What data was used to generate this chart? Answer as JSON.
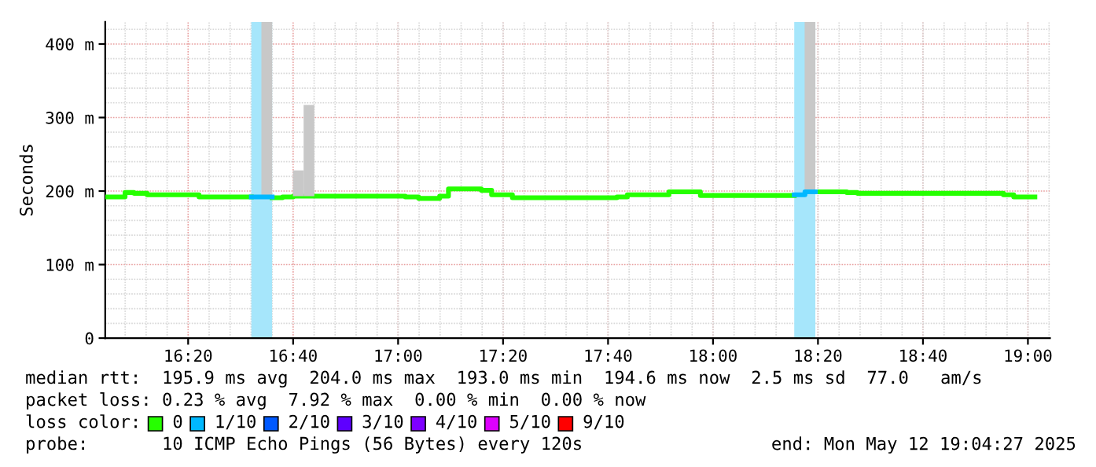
{
  "chart_data": {
    "type": "bar",
    "ylabel": "Seconds",
    "x": [
      16.078,
      16.133,
      16.161,
      16.203,
      16.368,
      16.534,
      16.567,
      16.6,
      16.633,
      16.667,
      16.7,
      16.733,
      17.023,
      17.065,
      17.132,
      17.16,
      17.264,
      17.297,
      17.363,
      17.695,
      17.728,
      17.86,
      17.96,
      18.258,
      18.292,
      18.325,
      18.425,
      18.458,
      18.922,
      18.955,
      19.022
    ],
    "series": [
      {
        "type": "step",
        "color": "#26ff00",
        "values": [
          192,
          198,
          197,
          195,
          192,
          null,
          null,
          191,
          192,
          193,
          193,
          193,
          192,
          190,
          193,
          203,
          201,
          195,
          191,
          192,
          195,
          199,
          194,
          null,
          null,
          199,
          198,
          197,
          195,
          192,
          192
        ]
      },
      {
        "type": "step",
        "color": "#00b8ff",
        "x": [
          16.534,
          16.567,
          16.6,
          18.258,
          18.292,
          18.325
        ],
        "values": [
          192,
          192,
          null,
          195,
          199,
          199
        ]
      },
      {
        "color": "#c8c8c8",
        "x": [
          16.583,
          16.683,
          16.717,
          18.308
        ],
        "values": [
          238,
          35,
          124,
          231
        ],
        "base": [
          192,
          193,
          193,
          199
        ]
      }
    ],
    "bands": [
      {
        "axis": "x",
        "from": 16.534,
        "to": 16.6,
        "color": "#a6e6fb"
      },
      {
        "axis": "x",
        "from": 18.258,
        "to": 18.325,
        "color": "#a6e6fb"
      }
    ],
    "xlim": [
      16.07,
      19.07
    ],
    "xticks": [
      {
        "value": 16.3333,
        "label": "16:20"
      },
      {
        "value": 16.6667,
        "label": "16:40"
      },
      {
        "value": 17,
        "label": "17:00"
      },
      {
        "value": 17.3333,
        "label": "17:20"
      },
      {
        "value": 17.6667,
        "label": "17:40"
      },
      {
        "value": 18,
        "label": "18:00"
      },
      {
        "value": 18.3333,
        "label": "18:20"
      },
      {
        "value": 18.6667,
        "label": "18:40"
      },
      {
        "value": 19,
        "label": "19:00"
      }
    ],
    "ylim": [
      0,
      430
    ],
    "yticks": [
      0,
      {
        "value": 100,
        "label": "100 m"
      },
      {
        "value": 200,
        "label": "200 m"
      },
      {
        "value": 300,
        "label": "300 m"
      },
      {
        "value": 400,
        "label": "400 m"
      }
    ],
    "grid": true,
    "annotations": [
      "median rtt:  195.9 ms avg  204.0 ms max  193.0 ms min  194.6 ms now  2.5 ms sd  77.0   am/s",
      "packet loss: 0.23 % avg  7.92 % max  0.00 % min  0.00 % now",
      "loss color:   0   1/10   2/10   3/10   4/10   5/10   9/10",
      "probe:       10 ICMP Echo Pings (56 Bytes) every 120s",
      "end: Mon May 12 19:04:27 2025"
    ]
  }
}
